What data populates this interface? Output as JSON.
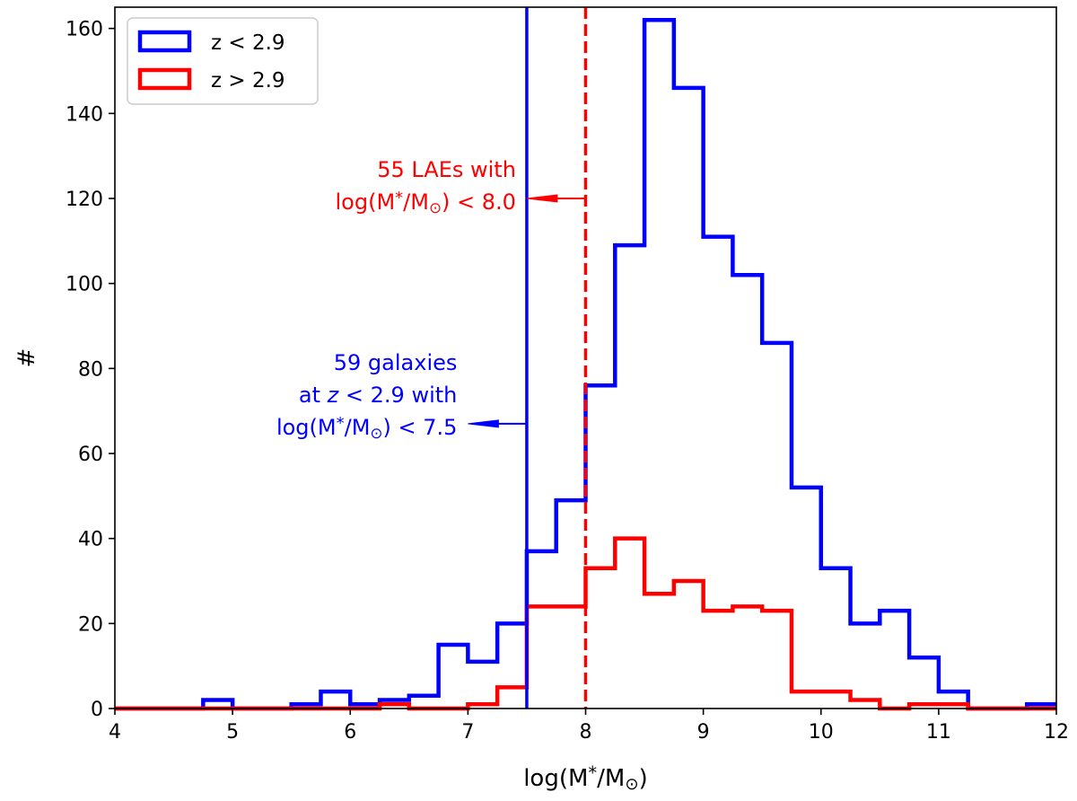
{
  "chart_data": {
    "type": "histogram",
    "title": "",
    "xlabel": "log(M*/M⊙)",
    "ylabel": "#",
    "xlim": [
      4,
      12
    ],
    "ylim": [
      0,
      165
    ],
    "xticks": [
      4,
      5,
      6,
      7,
      8,
      9,
      10,
      11,
      12
    ],
    "yticks": [
      0,
      20,
      40,
      60,
      80,
      100,
      120,
      140,
      160
    ],
    "bin_width": 0.25,
    "legend_position": "top-left",
    "series": [
      {
        "name": "z < 2.9",
        "color": "#0000ff",
        "bin_starts": [
          4.0,
          4.25,
          4.5,
          4.75,
          5.0,
          5.25,
          5.5,
          5.75,
          6.0,
          6.25,
          6.5,
          6.75,
          7.0,
          7.25,
          7.5,
          7.75,
          8.0,
          8.25,
          8.5,
          8.75,
          9.0,
          9.25,
          9.5,
          9.75,
          10.0,
          10.25,
          10.5,
          10.75,
          11.0,
          11.25,
          11.5,
          11.75
        ],
        "counts": [
          0,
          0,
          0,
          2,
          0,
          0,
          1,
          4,
          1,
          2,
          3,
          15,
          11,
          20,
          37,
          49,
          76,
          109,
          162,
          146,
          111,
          102,
          86,
          52,
          33,
          20,
          23,
          12,
          4,
          0,
          0,
          1
        ]
      },
      {
        "name": "z > 2.9",
        "color": "#ff0000",
        "bin_starts": [
          4.0,
          4.25,
          4.5,
          4.75,
          5.0,
          5.25,
          5.5,
          5.75,
          6.0,
          6.25,
          6.5,
          6.75,
          7.0,
          7.25,
          7.5,
          7.75,
          8.0,
          8.25,
          8.5,
          8.75,
          9.0,
          9.25,
          9.5,
          9.75,
          10.0,
          10.25,
          10.5,
          10.75,
          11.0,
          11.25,
          11.5,
          11.75
        ],
        "counts": [
          0,
          0,
          0,
          0,
          0,
          0,
          0,
          0,
          0,
          1,
          0,
          0,
          1,
          5,
          24,
          24,
          33,
          40,
          27,
          30,
          23,
          24,
          23,
          4,
          4,
          2,
          0,
          1,
          1,
          0,
          0,
          0
        ]
      }
    ],
    "vertical_lines": [
      {
        "x": 7.5,
        "style": "solid",
        "color": "#0000ff"
      },
      {
        "x": 8.0,
        "style": "dashed",
        "color": "#ff0000"
      }
    ],
    "annotations": [
      {
        "id": "red",
        "color": "#ff0000",
        "lines": [
          "55 LAEs with",
          "log(M*/M⊙) < 8.0"
        ],
        "arrow_from": [
          8.0,
          120
        ],
        "arrow_to": [
          7.5,
          120
        ]
      },
      {
        "id": "blue",
        "color": "#0000ff",
        "lines": [
          "59 galaxies",
          "at z < 2.9 with",
          "log(M*/M⊙) < 7.5"
        ],
        "arrow_from": [
          7.5,
          67
        ],
        "arrow_to": [
          7.0,
          67
        ]
      }
    ]
  }
}
